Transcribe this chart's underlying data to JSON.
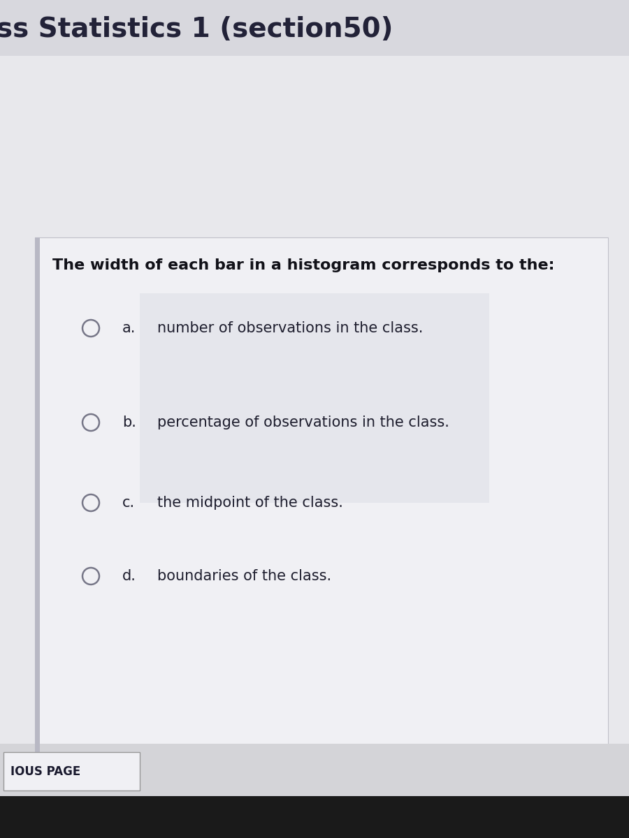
{
  "title_text": "The width of each bar in a histogram corresponds to the:",
  "header_text": "ss Statistics 1 (section50)",
  "options": [
    {
      "label": "a.",
      "text": "number of observations in the class."
    },
    {
      "label": "b.",
      "text": "percentage of observations in the class."
    },
    {
      "label": "c.",
      "text": "the midpoint of the class."
    },
    {
      "label": "d.",
      "text": "boundaries of the class."
    }
  ],
  "footer_text": "IOUS PAGE",
  "bg_page": "#e8e8ec",
  "bg_header": "#d8d8de",
  "bg_card": "#f0f0f4",
  "bg_watermark": "#c8ccd8",
  "bg_footer_area": "#d4d4d8",
  "bg_bottom_bar": "#1a1a1a",
  "text_dark": "#1a1a2e",
  "text_option": "#1e1e2e",
  "title_color": "#111118",
  "circle_stroke": "#777788",
  "circle_fill": "#f0f0f4",
  "left_border_color": "#b8b8c4",
  "footer_box_color": "#aaaaaa",
  "header_text_color": "#222238"
}
